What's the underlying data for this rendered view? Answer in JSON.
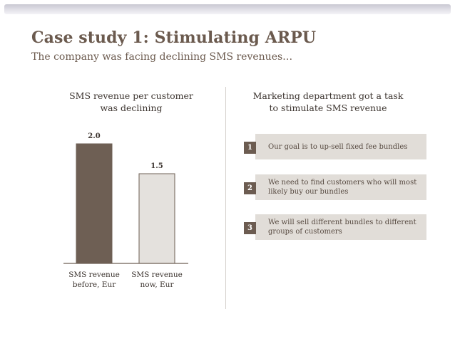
{
  "slide": {
    "title": "Case study 1: Stimulating ARPU",
    "subtitle": "The company was facing declining SMS revenues…"
  },
  "left_panel": {
    "heading_lines": [
      "SMS revenue per customer",
      "was declining"
    ]
  },
  "chart_data": {
    "type": "bar",
    "title": "SMS revenue per customer was declining",
    "categories": [
      [
        "SMS revenue",
        "before, Eur"
      ],
      [
        "SMS revenue",
        "now, Eur"
      ]
    ],
    "values": [
      2.0,
      1.5
    ],
    "value_labels": [
      "2.0",
      "1.5"
    ],
    "bar_colors": [
      "#6e5f54",
      "#e4e1dd"
    ],
    "bar_border": "#6e5f54",
    "ylim": [
      0,
      2.0
    ],
    "grid": false,
    "legend": "none"
  },
  "right_panel": {
    "heading_lines": [
      "Marketing department got a task",
      "to stimulate SMS revenue"
    ],
    "steps": [
      {
        "number": "1",
        "lines": [
          "Our goal is to up-sell fixed fee bundles"
        ]
      },
      {
        "number": "2",
        "lines": [
          "We need to find customers who will most",
          "likely buy our bundles"
        ]
      },
      {
        "number": "3",
        "lines": [
          "We will sell different bundles to different",
          "groups of customers"
        ]
      }
    ]
  },
  "colors": {
    "title": "#6b5a4e",
    "accent_dark": "#6c5c51",
    "step_background": "#e1ddd8",
    "divider": "#d4d0cb"
  }
}
